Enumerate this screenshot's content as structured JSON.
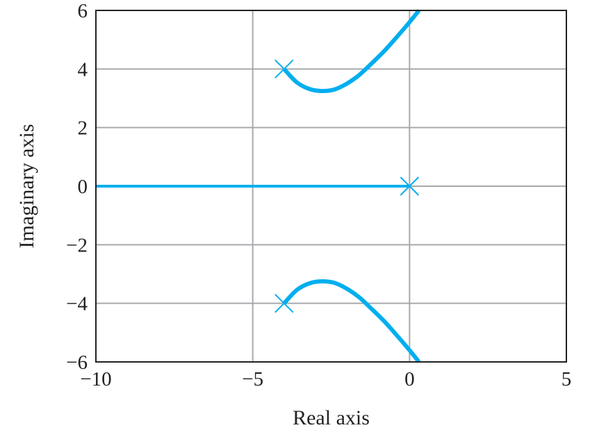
{
  "chart_data": {
    "type": "line",
    "title": "",
    "xlabel": "Real axis",
    "ylabel": "Imaginary axis",
    "xlim": [
      -10,
      5
    ],
    "ylim": [
      -6,
      6
    ],
    "xticks": [
      -10,
      -5,
      0,
      5
    ],
    "yticks": [
      -6,
      -4,
      -2,
      0,
      2,
      4,
      6
    ],
    "xtick_labels": [
      "−10",
      "−5",
      "0",
      "5"
    ],
    "ytick_labels": [
      "−6",
      "−4",
      "−2",
      "0",
      "2",
      "4",
      "6"
    ],
    "grid": true,
    "legend": "none",
    "line_color": "#00aeef",
    "grid_color": "#a7a9ac",
    "series": [
      {
        "points": [
          [
            -4,
            4
          ],
          [
            -3.6,
            3.55
          ],
          [
            -3.2,
            3.32
          ],
          [
            -2.8,
            3.25
          ],
          [
            -2.4,
            3.3
          ],
          [
            -2.0,
            3.5
          ],
          [
            -1.6,
            3.8
          ],
          [
            -1.2,
            4.2
          ],
          [
            -0.8,
            4.62
          ],
          [
            -0.4,
            5.1
          ],
          [
            0,
            5.6
          ],
          [
            0.3,
            6.0
          ]
        ]
      },
      {
        "points": [
          [
            -4,
            -4
          ],
          [
            -3.6,
            -3.55
          ],
          [
            -3.2,
            -3.32
          ],
          [
            -2.8,
            -3.25
          ],
          [
            -2.4,
            -3.3
          ],
          [
            -2.0,
            -3.5
          ],
          [
            -1.6,
            -3.8
          ],
          [
            -1.2,
            -4.2
          ],
          [
            -0.8,
            -4.62
          ],
          [
            -0.4,
            -5.1
          ],
          [
            0,
            -5.6
          ],
          [
            0.3,
            -6.0
          ]
        ]
      },
      {
        "points": [
          [
            -10,
            0
          ],
          [
            0,
            0
          ]
        ]
      }
    ],
    "poles": [
      [
        -4,
        4
      ],
      [
        -4,
        -4
      ],
      [
        0,
        0
      ]
    ]
  }
}
